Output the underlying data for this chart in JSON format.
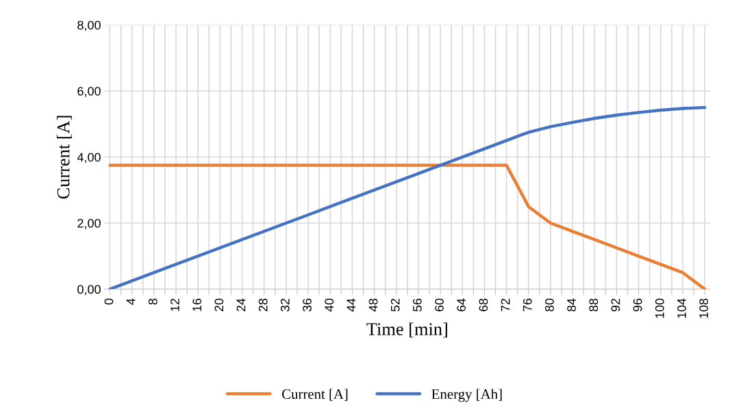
{
  "chart_data": {
    "type": "line",
    "xlabel": "Time [min]",
    "ylabel": "Current [A]",
    "x": [
      0,
      36,
      72,
      76,
      80,
      84,
      88,
      92,
      96,
      100,
      104,
      108
    ],
    "series": [
      {
        "name": "Current [A]",
        "color": "#ed7d31",
        "values": [
          3.75,
          3.75,
          3.75,
          2.5,
          2.0,
          1.75,
          1.5,
          1.25,
          1.0,
          0.75,
          0.5,
          0
        ]
      },
      {
        "name": "Energy [Ah]",
        "color": "#4472c4",
        "values": [
          0,
          2.25,
          4.5,
          4.75,
          4.92,
          5.05,
          5.17,
          5.27,
          5.35,
          5.42,
          5.47,
          5.5
        ]
      }
    ],
    "xlim": [
      -1,
      109
    ],
    "xticks": [
      0,
      {
        "value": 2,
        "label": null
      },
      4,
      {
        "value": 6,
        "label": null
      },
      8,
      {
        "value": 10,
        "label": null
      },
      12,
      {
        "value": 14,
        "label": null
      },
      16,
      {
        "value": 18,
        "label": null
      },
      20,
      {
        "value": 22,
        "label": null
      },
      24,
      {
        "value": 26,
        "label": null
      },
      28,
      {
        "value": 30,
        "label": null
      },
      32,
      {
        "value": 34,
        "label": null
      },
      36,
      {
        "value": 38,
        "label": null
      },
      40,
      {
        "value": 42,
        "label": null
      },
      44,
      {
        "value": 46,
        "label": null
      },
      48,
      {
        "value": 50,
        "label": null
      },
      52,
      {
        "value": 54,
        "label": null
      },
      56,
      {
        "value": 58,
        "label": null
      },
      60,
      {
        "value": 62,
        "label": null
      },
      64,
      {
        "value": 66,
        "label": null
      },
      68,
      {
        "value": 70,
        "label": null
      },
      72,
      {
        "value": 74,
        "label": null
      },
      76,
      {
        "value": 78,
        "label": null
      },
      80,
      {
        "value": 82,
        "label": null
      },
      84,
      {
        "value": 86,
        "label": null
      },
      88,
      {
        "value": 90,
        "label": null
      },
      92,
      {
        "value": 94,
        "label": null
      },
      96,
      {
        "value": 98,
        "label": null
      },
      100,
      {
        "value": 102,
        "label": null
      },
      104,
      {
        "value": 106,
        "label": null
      },
      108
    ],
    "ylim": [
      0,
      8
    ],
    "yticks": [
      {
        "value": 0,
        "label": "0,00"
      },
      {
        "value": 2,
        "label": "2,00"
      },
      {
        "value": 4,
        "label": "4,00"
      },
      {
        "value": 6,
        "label": "6,00"
      },
      {
        "value": 8,
        "label": "8,00"
      }
    ],
    "grid": true,
    "legend": "bottom",
    "marker": "none",
    "line_style": "solid"
  }
}
